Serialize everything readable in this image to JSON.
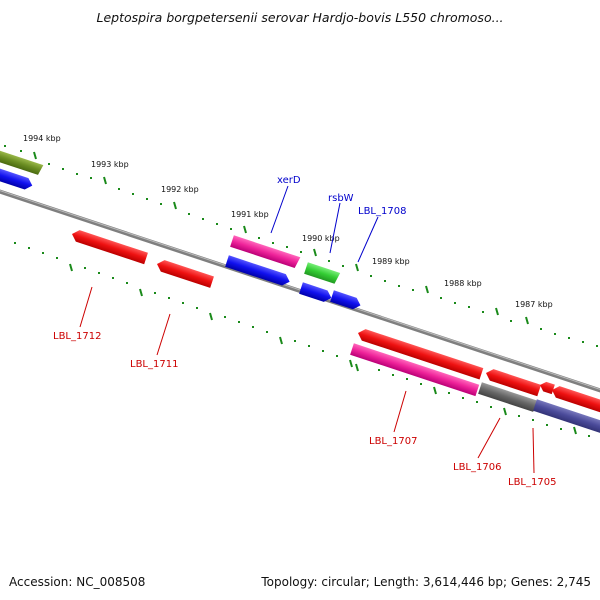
{
  "header": {
    "title": "Leptospira borgpetersenii serovar Hardjo-bovis L550 chromoso..."
  },
  "footer": {
    "accession": "Accession: NC_008508",
    "topology": "Topology: circular; Length: 3,614,446 bp; Genes: 2,745"
  },
  "colors": {
    "backbone": "#7f7f7f",
    "ticks": "#1a8a1a",
    "forward_label": "#0000cc",
    "reverse_label": "#cc0000",
    "red": "#ee1111",
    "blue": "#1111ee",
    "magenta": "#ee2299",
    "green": "#33cc33",
    "olive": "#6b8e23",
    "gray": "#666666",
    "navy": "#4a4a99"
  },
  "scale_labels": [
    "1994 kbp",
    "1993 kbp",
    "1992 kbp",
    "1991 kbp",
    "1990 kbp",
    "1989 kbp",
    "1988 kbp",
    "1987 kbp"
  ],
  "gene_labels": {
    "forward": [
      "xerD",
      "rsbW",
      "LBL_1708"
    ],
    "reverse": [
      "LBL_1712",
      "LBL_1711",
      "LBL_1707",
      "LBL_1706",
      "LBL_1705"
    ]
  }
}
